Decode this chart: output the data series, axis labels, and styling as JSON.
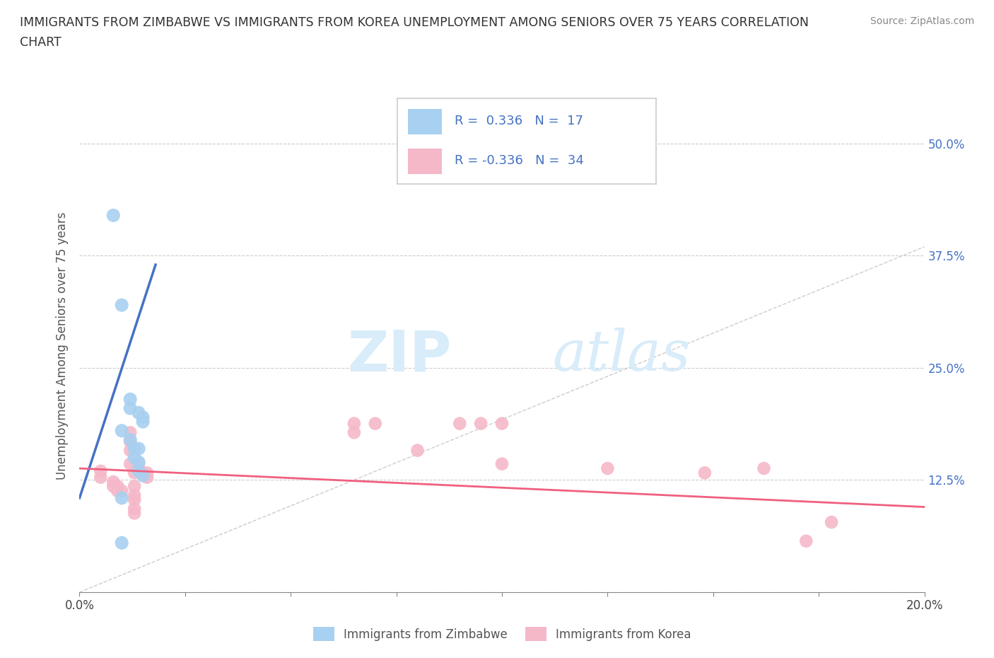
{
  "title_line1": "IMMIGRANTS FROM ZIMBABWE VS IMMIGRANTS FROM KOREA UNEMPLOYMENT AMONG SENIORS OVER 75 YEARS CORRELATION",
  "title_line2": "CHART",
  "source": "Source: ZipAtlas.com",
  "ylabel": "Unemployment Among Seniors over 75 years",
  "xlim": [
    0.0,
    0.2
  ],
  "ylim": [
    0.0,
    0.55
  ],
  "yticks": [
    0.0,
    0.125,
    0.25,
    0.375,
    0.5
  ],
  "ytick_labels": [
    "",
    "12.5%",
    "25.0%",
    "37.5%",
    "50.0%"
  ],
  "ytick_labels_right": [
    "",
    "12.5%",
    "25.0%",
    "37.5%",
    "50.0%"
  ],
  "xticks": [
    0.0,
    0.025,
    0.05,
    0.075,
    0.1,
    0.125,
    0.15,
    0.175,
    0.2
  ],
  "xtick_labels": [
    "0.0%",
    "",
    "",
    "",
    "",
    "",
    "",
    "",
    "20.0%"
  ],
  "r_zimbabwe": 0.336,
  "n_zimbabwe": 17,
  "r_korea": -0.336,
  "n_korea": 34,
  "legend_labels": [
    "Immigrants from Zimbabwe",
    "Immigrants from Korea"
  ],
  "color_zimbabwe": "#a8d0f0",
  "color_korea": "#f5b8c8",
  "line_color_zimbabwe": "#4472c4",
  "line_color_korea": "#f06080",
  "watermark_zip": "ZIP",
  "watermark_atlas": "atlas",
  "zimbabwe_points": [
    [
      0.008,
      0.42
    ],
    [
      0.01,
      0.32
    ],
    [
      0.012,
      0.215
    ],
    [
      0.012,
      0.205
    ],
    [
      0.014,
      0.2
    ],
    [
      0.015,
      0.195
    ],
    [
      0.015,
      0.19
    ],
    [
      0.01,
      0.18
    ],
    [
      0.012,
      0.17
    ],
    [
      0.013,
      0.16
    ],
    [
      0.014,
      0.16
    ],
    [
      0.013,
      0.15
    ],
    [
      0.014,
      0.145
    ],
    [
      0.014,
      0.135
    ],
    [
      0.015,
      0.13
    ],
    [
      0.01,
      0.105
    ],
    [
      0.01,
      0.055
    ]
  ],
  "korea_points": [
    [
      0.005,
      0.135
    ],
    [
      0.005,
      0.128
    ],
    [
      0.008,
      0.123
    ],
    [
      0.008,
      0.118
    ],
    [
      0.009,
      0.118
    ],
    [
      0.009,
      0.113
    ],
    [
      0.01,
      0.113
    ],
    [
      0.012,
      0.178
    ],
    [
      0.012,
      0.168
    ],
    [
      0.012,
      0.158
    ],
    [
      0.012,
      0.143
    ],
    [
      0.013,
      0.133
    ],
    [
      0.013,
      0.118
    ],
    [
      0.013,
      0.108
    ],
    [
      0.013,
      0.103
    ],
    [
      0.013,
      0.093
    ],
    [
      0.013,
      0.088
    ],
    [
      0.014,
      0.143
    ],
    [
      0.015,
      0.133
    ],
    [
      0.016,
      0.133
    ],
    [
      0.016,
      0.128
    ],
    [
      0.065,
      0.188
    ],
    [
      0.065,
      0.178
    ],
    [
      0.07,
      0.188
    ],
    [
      0.08,
      0.158
    ],
    [
      0.09,
      0.188
    ],
    [
      0.095,
      0.188
    ],
    [
      0.1,
      0.188
    ],
    [
      0.1,
      0.143
    ],
    [
      0.125,
      0.138
    ],
    [
      0.148,
      0.133
    ],
    [
      0.162,
      0.138
    ],
    [
      0.172,
      0.057
    ],
    [
      0.178,
      0.078
    ]
  ],
  "ref_line_x": [
    0.0,
    0.2
  ],
  "ref_line_y": [
    0.0,
    0.385
  ],
  "zim_reg_line_x": [
    0.0,
    0.018
  ],
  "zim_reg_line_y": [
    0.105,
    0.365
  ],
  "korea_reg_line_x": [
    0.0,
    0.2
  ],
  "korea_reg_line_y": [
    0.138,
    0.095
  ]
}
